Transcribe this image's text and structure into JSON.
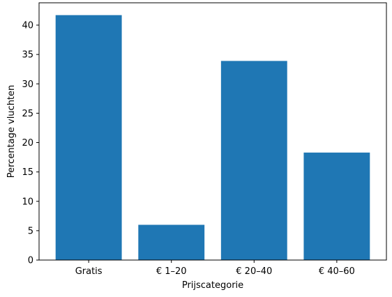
{
  "chart_data": {
    "type": "bar",
    "categories": [
      "Gratis",
      "€ 1–20",
      "€ 20–40",
      "€ 40–60"
    ],
    "values": [
      41.7,
      6.0,
      33.9,
      18.3
    ],
    "xlabel": "Prijscategorie",
    "ylabel": "Percentage vluchten",
    "ylim": [
      0,
      43.8
    ],
    "yticks": [
      0,
      5,
      10,
      15,
      20,
      25,
      30,
      35,
      40
    ],
    "grid": false,
    "bar_color": "#1f77b4"
  }
}
